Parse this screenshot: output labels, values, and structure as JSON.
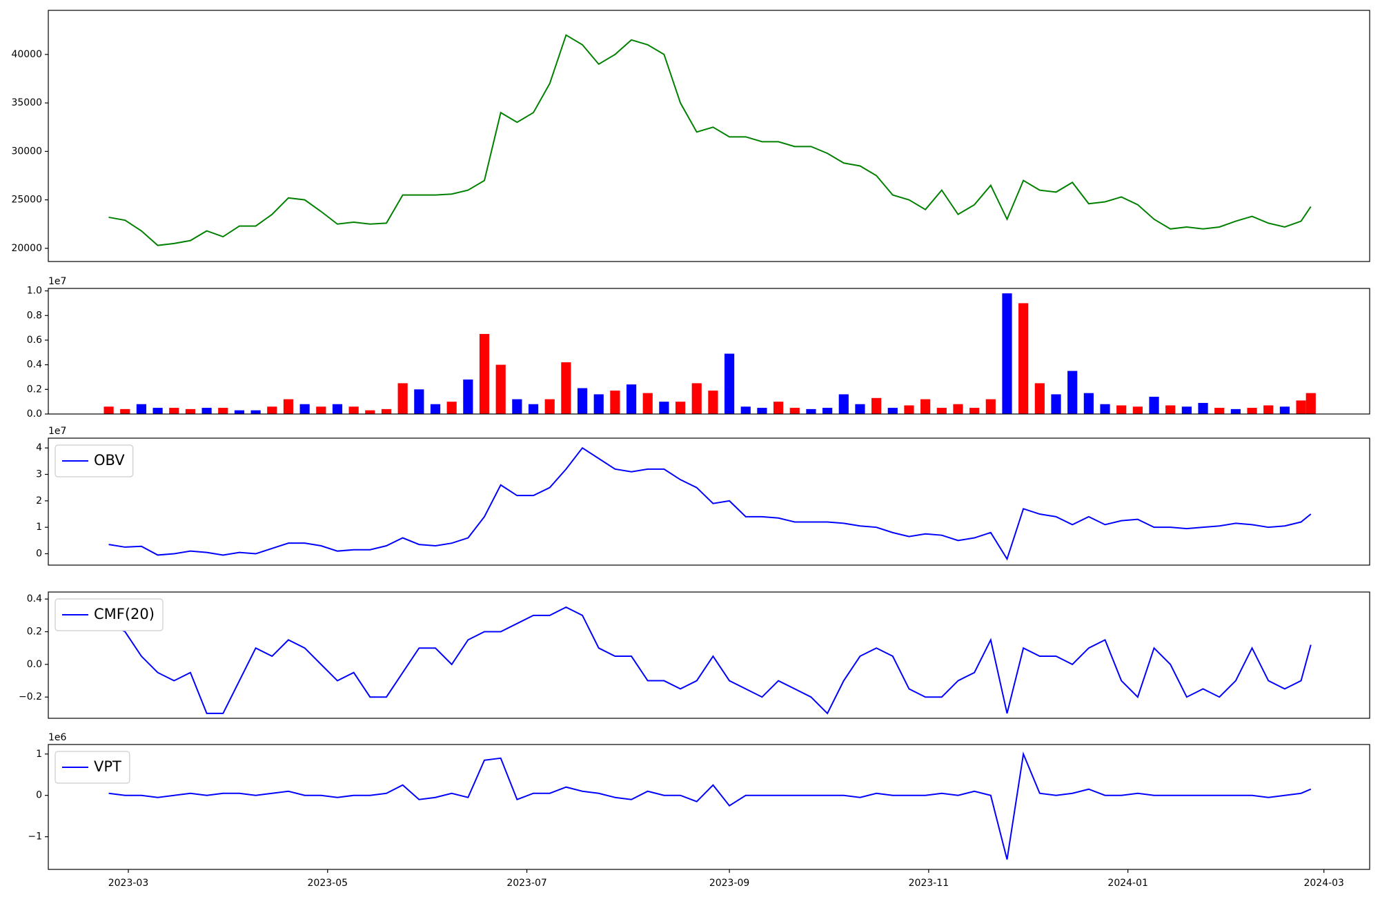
{
  "chart_data": [
    {
      "type": "line",
      "x": [
        -6,
        -1,
        4,
        9,
        14,
        19,
        24,
        29,
        34,
        39,
        44,
        49,
        54,
        59,
        64,
        69,
        74,
        79,
        84,
        89,
        94,
        99,
        104,
        109,
        114,
        119,
        124,
        129,
        134,
        139,
        144,
        149,
        154,
        159,
        164,
        169,
        174,
        179,
        184,
        189,
        194,
        199,
        204,
        209,
        214,
        219,
        224,
        229,
        234,
        239,
        244,
        249,
        254,
        259,
        264,
        269,
        274,
        279,
        284,
        289,
        294,
        299,
        304,
        309,
        314,
        319,
        324,
        329,
        334,
        339,
        344,
        349,
        354,
        359,
        362
      ],
      "xlim": [
        -24.5,
        380
      ],
      "series": [
        {
          "color": "#008000",
          "values": [
            23200,
            22900,
            21800,
            20300,
            20500,
            20800,
            21800,
            21200,
            22300,
            22300,
            23500,
            25200,
            25000,
            23800,
            22500,
            22700,
            22500,
            22600,
            25500,
            25500,
            25500,
            25600,
            26000,
            27000,
            34000,
            33000,
            34000,
            37000,
            42000,
            41000,
            39000,
            40000,
            41500,
            41000,
            40000,
            35000,
            32000,
            32500,
            31500,
            31500,
            31000,
            31000,
            30500,
            30500,
            29800,
            28800,
            28500,
            27500,
            25500,
            25000,
            24000,
            26000,
            23500,
            24500,
            26500,
            23000,
            27000,
            26000,
            25800,
            26800,
            24600,
            24800,
            25300,
            24500,
            23000,
            22000,
            22200,
            22000,
            22200,
            22800,
            23300,
            22600,
            22200,
            22800,
            24300
          ]
        }
      ],
      "ylim": [
        18640,
        44550
      ],
      "yticks": [
        20000,
        25000,
        30000,
        35000,
        40000
      ]
    },
    {
      "type": "bar",
      "x": [
        -6,
        -1,
        4,
        9,
        14,
        19,
        24,
        29,
        34,
        39,
        44,
        49,
        54,
        59,
        64,
        69,
        74,
        79,
        84,
        89,
        94,
        99,
        104,
        109,
        114,
        119,
        124,
        129,
        134,
        139,
        144,
        149,
        154,
        159,
        164,
        169,
        174,
        179,
        184,
        189,
        194,
        199,
        204,
        209,
        214,
        219,
        224,
        229,
        234,
        239,
        244,
        249,
        254,
        259,
        264,
        269,
        274,
        279,
        284,
        289,
        294,
        299,
        304,
        309,
        314,
        319,
        324,
        329,
        334,
        339,
        344,
        349,
        354,
        359,
        362
      ],
      "xlim": [
        -24.5,
        380
      ],
      "values": [
        0.06,
        0.04,
        0.08,
        0.05,
        0.05,
        0.04,
        0.05,
        0.05,
        0.03,
        0.03,
        0.06,
        0.12,
        0.08,
        0.06,
        0.08,
        0.06,
        0.03,
        0.04,
        0.25,
        0.2,
        0.08,
        0.1,
        0.28,
        0.65,
        0.4,
        0.12,
        0.08,
        0.12,
        0.42,
        0.21,
        0.16,
        0.19,
        0.24,
        0.17,
        0.1,
        0.1,
        0.25,
        0.19,
        0.49,
        0.06,
        0.05,
        0.1,
        0.05,
        0.04,
        0.05,
        0.16,
        0.08,
        0.13,
        0.05,
        0.07,
        0.12,
        0.05,
        0.08,
        0.05,
        0.12,
        0.98,
        0.9,
        0.25,
        0.16,
        0.35,
        0.17,
        0.08,
        0.07,
        0.06,
        0.14,
        0.07,
        0.06,
        0.09,
        0.05,
        0.04,
        0.05,
        0.07,
        0.06,
        0.11,
        0.17
      ],
      "colors": [
        "#ff0000",
        "#ff0000",
        "#0000ff",
        "#0000ff",
        "#ff0000",
        "#ff0000",
        "#0000ff",
        "#ff0000",
        "#0000ff",
        "#0000ff",
        "#ff0000",
        "#ff0000",
        "#0000ff",
        "#ff0000",
        "#0000ff",
        "#ff0000",
        "#ff0000",
        "#ff0000",
        "#ff0000",
        "#0000ff",
        "#0000ff",
        "#ff0000",
        "#0000ff",
        "#ff0000",
        "#ff0000",
        "#0000ff",
        "#0000ff",
        "#ff0000",
        "#ff0000",
        "#0000ff",
        "#0000ff",
        "#ff0000",
        "#0000ff",
        "#ff0000",
        "#0000ff",
        "#ff0000",
        "#ff0000",
        "#ff0000",
        "#0000ff",
        "#0000ff",
        "#0000ff",
        "#ff0000",
        "#ff0000",
        "#0000ff",
        "#0000ff",
        "#0000ff",
        "#0000ff",
        "#ff0000",
        "#0000ff",
        "#ff0000",
        "#ff0000",
        "#ff0000",
        "#ff0000",
        "#ff0000",
        "#ff0000",
        "#0000ff",
        "#ff0000",
        "#ff0000",
        "#0000ff",
        "#0000ff",
        "#0000ff",
        "#0000ff",
        "#ff0000",
        "#ff0000",
        "#0000ff",
        "#ff0000",
        "#0000ff",
        "#0000ff",
        "#ff0000",
        "#0000ff",
        "#ff0000",
        "#ff0000",
        "#0000ff",
        "#ff0000",
        "#ff0000"
      ],
      "offset_label": "1e7",
      "ylim": [
        0,
        1.02
      ],
      "yticks": [
        {
          "value": 0,
          "label": "0.0"
        },
        0.2,
        0.4,
        0.6,
        0.8,
        {
          "value": 1,
          "label": "1.0"
        }
      ]
    },
    {
      "type": "line",
      "x": [
        -6,
        -1,
        4,
        9,
        14,
        19,
        24,
        29,
        34,
        39,
        44,
        49,
        54,
        59,
        64,
        69,
        74,
        79,
        84,
        89,
        94,
        99,
        104,
        109,
        114,
        119,
        124,
        129,
        134,
        139,
        144,
        149,
        154,
        159,
        164,
        169,
        174,
        179,
        184,
        189,
        194,
        199,
        204,
        209,
        214,
        219,
        224,
        229,
        234,
        239,
        244,
        249,
        254,
        259,
        264,
        269,
        274,
        279,
        284,
        289,
        294,
        299,
        304,
        309,
        314,
        319,
        324,
        329,
        334,
        339,
        344,
        349,
        354,
        359,
        362
      ],
      "xlim": [
        -24.5,
        380
      ],
      "series": [
        {
          "name": "OBV",
          "color": "#0000ff",
          "values": [
            0.35,
            0.25,
            0.28,
            -0.05,
            0.0,
            0.1,
            0.05,
            -0.05,
            0.05,
            0.0,
            0.2,
            0.4,
            0.4,
            0.3,
            0.1,
            0.15,
            0.15,
            0.3,
            0.6,
            0.35,
            0.3,
            0.4,
            0.6,
            1.4,
            2.6,
            2.2,
            2.2,
            2.5,
            3.2,
            4.0,
            3.6,
            3.2,
            3.1,
            3.2,
            3.2,
            2.8,
            2.5,
            1.9,
            2.0,
            1.4,
            1.4,
            1.35,
            1.2,
            1.2,
            1.2,
            1.15,
            1.05,
            1.0,
            0.8,
            0.65,
            0.75,
            0.7,
            0.5,
            0.6,
            0.8,
            -0.2,
            1.7,
            1.5,
            1.4,
            1.1,
            1.4,
            1.1,
            1.25,
            1.3,
            1.0,
            1.0,
            0.95,
            1.0,
            1.05,
            1.15,
            1.1,
            1.0,
            1.05,
            1.2,
            1.5
          ]
        }
      ],
      "offset_label": "1e7",
      "ylim": [
        -0.43,
        4.37
      ],
      "yticks": [
        0,
        1,
        2,
        3,
        4
      ]
    },
    {
      "type": "line",
      "x": [
        -6,
        -1,
        4,
        9,
        14,
        19,
        24,
        29,
        34,
        39,
        44,
        49,
        54,
        59,
        64,
        69,
        74,
        79,
        84,
        89,
        94,
        99,
        104,
        109,
        114,
        119,
        124,
        129,
        134,
        139,
        144,
        149,
        154,
        159,
        164,
        169,
        174,
        179,
        184,
        189,
        194,
        199,
        204,
        209,
        214,
        219,
        224,
        229,
        234,
        239,
        244,
        249,
        254,
        259,
        264,
        269,
        274,
        279,
        284,
        289,
        294,
        299,
        304,
        309,
        314,
        319,
        324,
        329,
        334,
        339,
        344,
        349,
        354,
        359,
        362
      ],
      "xlim": [
        -24.5,
        380
      ],
      "series": [
        {
          "name": "CMF(20)",
          "color": "#0000ff",
          "values": [
            0.25,
            0.2,
            0.05,
            -0.05,
            -0.1,
            -0.05,
            -0.3,
            -0.3,
            -0.1,
            0.1,
            0.05,
            0.15,
            0.1,
            0.0,
            -0.1,
            -0.05,
            -0.2,
            -0.2,
            -0.05,
            0.1,
            0.1,
            0.0,
            0.15,
            0.2,
            0.2,
            0.25,
            0.3,
            0.3,
            0.35,
            0.3,
            0.1,
            0.05,
            0.05,
            -0.1,
            -0.1,
            -0.15,
            -0.1,
            0.05,
            -0.1,
            -0.15,
            -0.2,
            -0.1,
            -0.15,
            -0.2,
            -0.3,
            -0.1,
            0.05,
            0.1,
            0.05,
            -0.15,
            -0.2,
            -0.2,
            -0.1,
            -0.05,
            0.15,
            -0.3,
            0.1,
            0.05,
            0.05,
            0.0,
            0.1,
            0.15,
            -0.1,
            -0.2,
            0.1,
            0.0,
            -0.2,
            -0.15,
            -0.2,
            -0.1,
            0.1,
            -0.1,
            -0.15,
            -0.1,
            0.12
          ]
        }
      ],
      "ylim": [
        -0.33,
        0.443
      ],
      "yticks": [
        {
          "value": -0.2,
          "label": "−0.2"
        },
        {
          "value": 0,
          "label": "0.0"
        },
        0.2,
        0.4
      ]
    },
    {
      "type": "line",
      "x": [
        -6,
        -1,
        4,
        9,
        14,
        19,
        24,
        29,
        34,
        39,
        44,
        49,
        54,
        59,
        64,
        69,
        74,
        79,
        84,
        89,
        94,
        99,
        104,
        109,
        114,
        119,
        124,
        129,
        134,
        139,
        144,
        149,
        154,
        159,
        164,
        169,
        174,
        179,
        184,
        189,
        194,
        199,
        204,
        209,
        214,
        219,
        224,
        229,
        234,
        239,
        244,
        249,
        254,
        259,
        264,
        269,
        274,
        279,
        284,
        289,
        294,
        299,
        304,
        309,
        314,
        319,
        324,
        329,
        334,
        339,
        344,
        349,
        354,
        359,
        362
      ],
      "xlim": [
        -24.5,
        380
      ],
      "series": [
        {
          "name": "VPT",
          "color": "#0000ff",
          "values": [
            0.05,
            0,
            0,
            -0.05,
            0,
            0.05,
            0,
            0.05,
            0.05,
            0,
            0.05,
            0.1,
            0,
            0,
            -0.05,
            0,
            0,
            0.05,
            0.25,
            -0.1,
            -0.05,
            0.05,
            -0.05,
            0.85,
            0.9,
            -0.1,
            0.05,
            0.05,
            0.2,
            0.1,
            0.05,
            -0.05,
            -0.1,
            0.1,
            0,
            0,
            -0.15,
            0.25,
            -0.25,
            0,
            0,
            0,
            0,
            0,
            0,
            0,
            -0.05,
            0.05,
            0,
            0,
            0,
            0.05,
            0,
            0.1,
            0,
            -1.55,
            1.0,
            0.05,
            0,
            0.05,
            0.15,
            0,
            0,
            0.05,
            0,
            0,
            0,
            0,
            0,
            0,
            0,
            -0.05,
            0,
            0.05,
            0.15
          ]
        }
      ],
      "offset_label": "1e6",
      "ylim": [
        -1.79,
        1.23
      ],
      "yticks": [
        {
          "value": -1,
          "label": "−1"
        },
        0,
        1
      ],
      "xticks": [
        {
          "value": 0,
          "label": "2023-03"
        },
        {
          "value": 61,
          "label": "2023-05"
        },
        {
          "value": 122,
          "label": "2023-07"
        },
        {
          "value": 184,
          "label": "2023-09"
        },
        {
          "value": 245,
          "label": "2023-11"
        },
        {
          "value": 306,
          "label": "2024-01"
        },
        {
          "value": 366,
          "label": "2024-03"
        }
      ]
    }
  ]
}
